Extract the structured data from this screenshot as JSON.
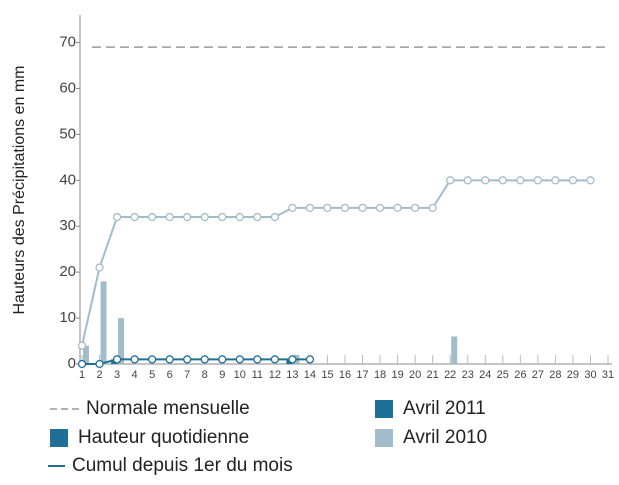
{
  "chart_data": {
    "type": "bar-line",
    "y_label": "Hauteurs des Précipitations en mm",
    "categories": [
      1,
      2,
      3,
      4,
      5,
      6,
      7,
      8,
      9,
      10,
      11,
      12,
      13,
      14,
      15,
      16,
      17,
      18,
      19,
      20,
      21,
      22,
      23,
      24,
      25,
      26,
      27,
      28,
      29,
      30,
      31
    ],
    "ylim": [
      0,
      76
    ],
    "yticks": [
      0,
      10,
      20,
      30,
      40,
      50,
      60,
      70
    ],
    "normal": {
      "name": "Normale mensuelle",
      "value": 69,
      "color": "#999999"
    },
    "legend": {
      "daily": "Hauteur quotidienne",
      "cumulative": "Cumul depuis 1er du mois"
    },
    "series": [
      {
        "name": "Avril 2011",
        "color": "#1f6f96",
        "daily": [
          0,
          0,
          1,
          0,
          0,
          0,
          0,
          0,
          0,
          0,
          0,
          0,
          1,
          0,
          null,
          null,
          null,
          null,
          null,
          null,
          null,
          null,
          null,
          null,
          null,
          null,
          null,
          null,
          null,
          null,
          null
        ],
        "cumulative": [
          0,
          0,
          1,
          1,
          1,
          1,
          1,
          1,
          1,
          1,
          1,
          1,
          1,
          1,
          null,
          null,
          null,
          null,
          null,
          null,
          null,
          null,
          null,
          null,
          null,
          null,
          null,
          null,
          null,
          null,
          null
        ]
      },
      {
        "name": "Avril 2010",
        "color": "#a3bccb",
        "daily": [
          4,
          18,
          10,
          0,
          0,
          0,
          0,
          0,
          0,
          0,
          0,
          0,
          2,
          0,
          0,
          0,
          0,
          0,
          0,
          0,
          0,
          6,
          0,
          0,
          0,
          0,
          0,
          0,
          0,
          0,
          null
        ],
        "cumulative": [
          4,
          21,
          32,
          32,
          32,
          32,
          32,
          32,
          32,
          32,
          32,
          32,
          34,
          34,
          34,
          34,
          34,
          34,
          34,
          34,
          34,
          40,
          40,
          40,
          40,
          40,
          40,
          40,
          40,
          40,
          null
        ]
      }
    ]
  }
}
